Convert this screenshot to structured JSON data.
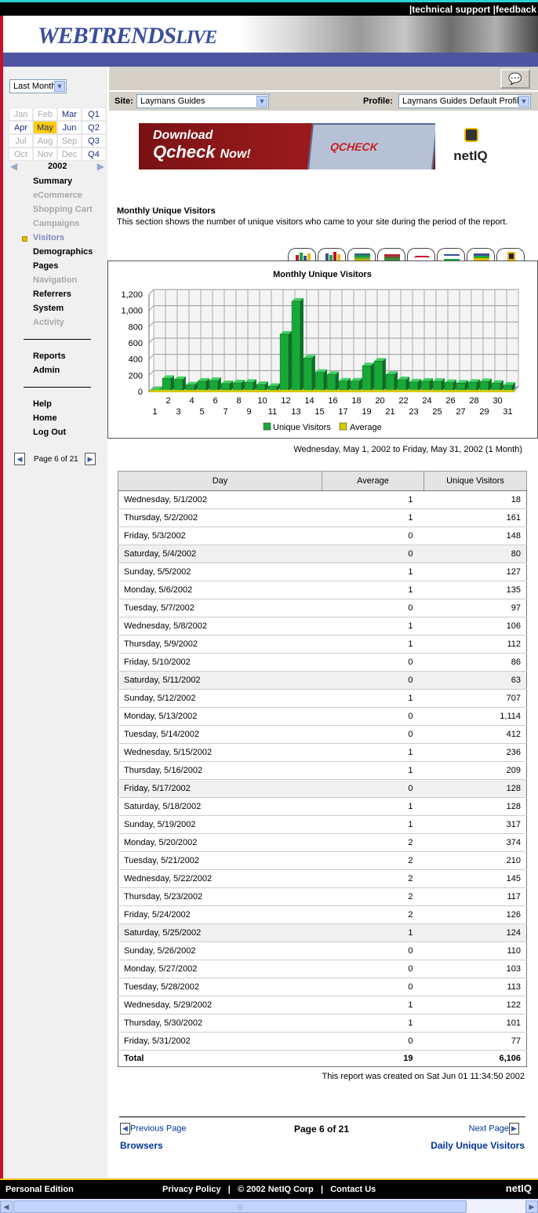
{
  "top_links": {
    "technical_support": "technical support",
    "feedback": "feedback",
    "sep": "|"
  },
  "brand": {
    "logo_main": "WEBTRENDS",
    "logo_suffix": "LIVE"
  },
  "sidebar": {
    "period": "Last Month",
    "calendar": [
      [
        "Jan",
        "Feb",
        "Mar",
        "Q1"
      ],
      [
        "Apr",
        "May",
        "Jun",
        "Q2"
      ],
      [
        "Jul",
        "Aug",
        "Sep",
        "Q3"
      ],
      [
        "Oct",
        "Nov",
        "Dec",
        "Q4"
      ]
    ],
    "year": "2002",
    "nav": [
      "Summary",
      "eCommerce",
      "Shopping Cart",
      "Campaigns",
      "Visitors",
      "Demographics",
      "Pages",
      "Navigation",
      "Referrers",
      "System",
      "Activity"
    ],
    "nav2": [
      "Reports",
      "Admin"
    ],
    "nav3": [
      "Help",
      "Home",
      "Log Out"
    ],
    "page_label": "Page 6 of 21"
  },
  "toolbar": {
    "site_label": "Site:",
    "site_value": "Laymans Guides",
    "profile_label": "Profile:",
    "profile_value": "Laymans Guides Default Profile"
  },
  "banner": {
    "line1": "Download",
    "line2": "Qcheck",
    "line2b": "Now!",
    "product": "QCHECK",
    "brand": "netIQ"
  },
  "section": {
    "title": "Monthly Unique Visitors",
    "description": "This section shows the number of unique visitors who came to your site during the period of the report."
  },
  "chart_data": {
    "type": "bar",
    "title": "Monthly Unique Visitors",
    "categories": [
      "1",
      "2",
      "3",
      "4",
      "5",
      "6",
      "7",
      "8",
      "9",
      "10",
      "11",
      "12",
      "13",
      "14",
      "15",
      "16",
      "17",
      "18",
      "19",
      "20",
      "21",
      "22",
      "23",
      "24",
      "25",
      "26",
      "27",
      "28",
      "29",
      "30",
      "31"
    ],
    "series": [
      {
        "name": "Unique Visitors",
        "color": "#18a838",
        "values": [
          18,
          161,
          148,
          80,
          127,
          135,
          97,
          106,
          112,
          86,
          63,
          707,
          1114,
          412,
          236,
          209,
          128,
          128,
          317,
          374,
          210,
          145,
          117,
          126,
          124,
          110,
          103,
          113,
          122,
          101,
          77
        ]
      },
      {
        "name": "Average",
        "color": "#d4c800",
        "values": [
          1,
          1,
          0,
          0,
          1,
          1,
          0,
          1,
          1,
          0,
          0,
          1,
          0,
          0,
          1,
          1,
          0,
          1,
          1,
          2,
          2,
          2,
          2,
          2,
          1,
          0,
          0,
          0,
          1,
          1,
          0
        ]
      }
    ],
    "ylim": [
      0,
      1200
    ],
    "yticks": [
      "0",
      "200",
      "400",
      "600",
      "800",
      "1,000",
      "1,200"
    ],
    "grid": true,
    "legend_position": "bottom"
  },
  "date_range": "Wednesday, May 1, 2002 to Friday, May 31, 2002 (1 Month)",
  "table": {
    "headers": [
      "Day",
      "Average",
      "Unique Visitors"
    ],
    "rows": [
      [
        "Wednesday, 5/1/2002",
        "1",
        "18"
      ],
      [
        "Thursday, 5/2/2002",
        "1",
        "161"
      ],
      [
        "Friday, 5/3/2002",
        "0",
        "148"
      ],
      [
        "Saturday, 5/4/2002",
        "0",
        "80"
      ],
      [
        "Sunday, 5/5/2002",
        "1",
        "127"
      ],
      [
        "Monday, 5/6/2002",
        "1",
        "135"
      ],
      [
        "Tuesday, 5/7/2002",
        "0",
        "97"
      ],
      [
        "Wednesday, 5/8/2002",
        "1",
        "106"
      ],
      [
        "Thursday, 5/9/2002",
        "1",
        "112"
      ],
      [
        "Friday, 5/10/2002",
        "0",
        "86"
      ],
      [
        "Saturday, 5/11/2002",
        "0",
        "63"
      ],
      [
        "Sunday, 5/12/2002",
        "1",
        "707"
      ],
      [
        "Monday, 5/13/2002",
        "0",
        "1,114"
      ],
      [
        "Tuesday, 5/14/2002",
        "0",
        "412"
      ],
      [
        "Wednesday, 5/15/2002",
        "1",
        "236"
      ],
      [
        "Thursday, 5/16/2002",
        "1",
        "209"
      ],
      [
        "Friday, 5/17/2002",
        "0",
        "128"
      ],
      [
        "Saturday, 5/18/2002",
        "1",
        "128"
      ],
      [
        "Sunday, 5/19/2002",
        "1",
        "317"
      ],
      [
        "Monday, 5/20/2002",
        "2",
        "374"
      ],
      [
        "Tuesday, 5/21/2002",
        "2",
        "210"
      ],
      [
        "Wednesday, 5/22/2002",
        "2",
        "145"
      ],
      [
        "Thursday, 5/23/2002",
        "2",
        "117"
      ],
      [
        "Friday, 5/24/2002",
        "2",
        "126"
      ],
      [
        "Saturday, 5/25/2002",
        "1",
        "124"
      ],
      [
        "Sunday, 5/26/2002",
        "0",
        "110"
      ],
      [
        "Monday, 5/27/2002",
        "0",
        "103"
      ],
      [
        "Tuesday, 5/28/2002",
        "0",
        "113"
      ],
      [
        "Wednesday, 5/29/2002",
        "1",
        "122"
      ],
      [
        "Thursday, 5/30/2002",
        "1",
        "101"
      ],
      [
        "Friday, 5/31/2002",
        "0",
        "77"
      ]
    ],
    "total": [
      "Total",
      "19",
      "6,106"
    ]
  },
  "created": "This report was created on Sat Jun 01 11:34:50 2002",
  "pager": {
    "previous_page": "Previous Page",
    "status": "Page 6 of 21",
    "next_page": "Next Page",
    "previous_section": "Browsers",
    "next_section": "Daily Unique Visitors"
  },
  "footer": {
    "edition": "Personal Edition",
    "privacy": "Privacy Policy",
    "copyright": "© 2002 NetIQ Corp",
    "contact": "Contact Us",
    "logo": "netIQ",
    "sep": "|"
  }
}
